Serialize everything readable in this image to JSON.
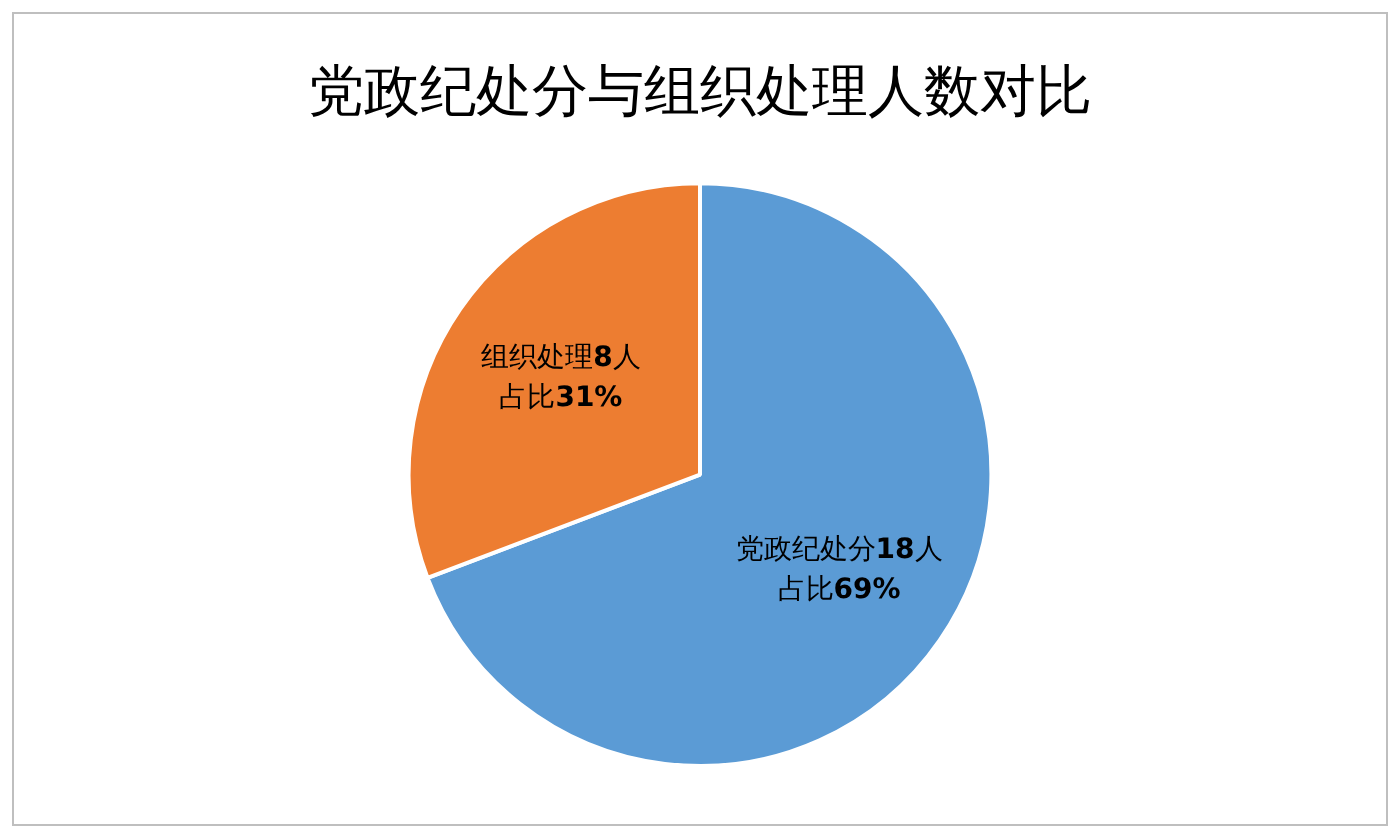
{
  "chart_data": {
    "type": "pie",
    "title": "党政纪处分与组织处理人数对比",
    "categories": [
      "党政纪处分",
      "组织处理"
    ],
    "values": [
      18,
      8
    ],
    "colors": [
      "#5b9bd5",
      "#ed7d31"
    ],
    "value_labels": [
      "18人",
      "8人"
    ],
    "annotations": [
      "占比69%",
      "占比31%"
    ],
    "legend": false
  }
}
